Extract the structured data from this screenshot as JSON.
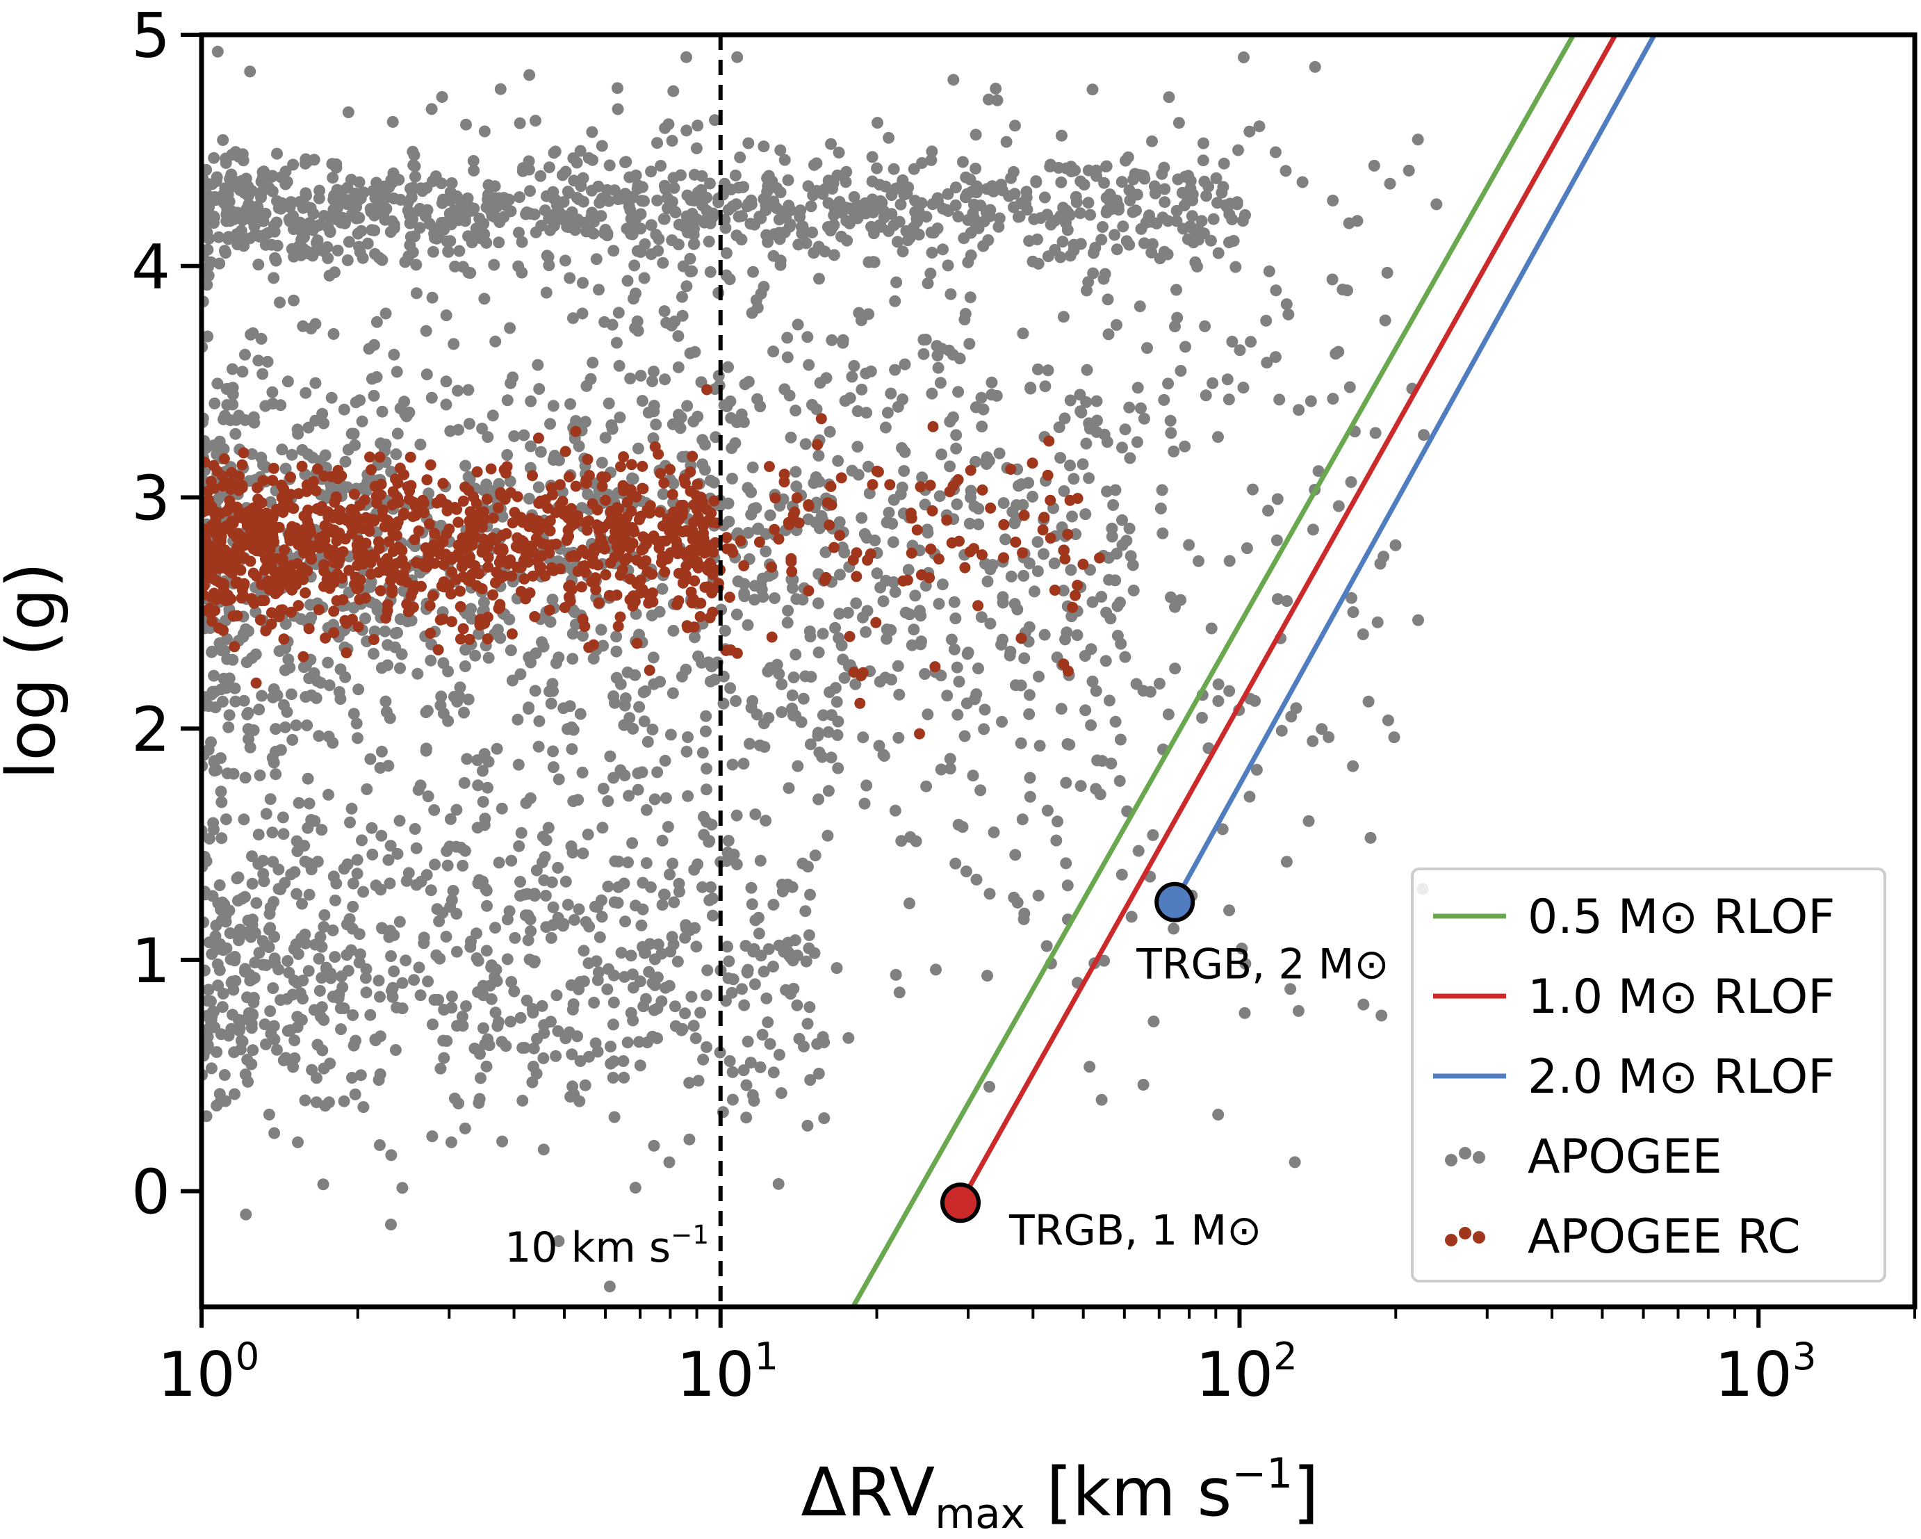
{
  "chart_data": {
    "type": "scatter",
    "x_scale": "log",
    "xlim": [
      1,
      2000
    ],
    "ylim": [
      -0.5,
      5
    ],
    "ylabel": "log (g)",
    "xlabel": {
      "main": "ΔRV",
      "sub": "max",
      "unit": " [km s",
      "exp": "−1",
      "close": "]"
    },
    "x_ticks": [
      {
        "value": 1,
        "base": "10",
        "exp": "0"
      },
      {
        "value": 10,
        "base": "10",
        "exp": "1"
      },
      {
        "value": 100,
        "base": "10",
        "exp": "2"
      },
      {
        "value": 1000,
        "base": "10",
        "exp": "3"
      }
    ],
    "y_ticks": [
      {
        "value": 0,
        "label": "0"
      },
      {
        "value": 1,
        "label": "1"
      },
      {
        "value": 2,
        "label": "2"
      },
      {
        "value": 3,
        "label": "3"
      },
      {
        "value": 4,
        "label": "4"
      },
      {
        "value": 5,
        "label": "5"
      }
    ],
    "vline": {
      "x": 10,
      "label_main": "10 km s",
      "label_exp": "−1",
      "style": "dashed",
      "color": "#000000"
    },
    "series": [
      {
        "name": "0.5 M⊙ RLOF",
        "type": "line",
        "color": "#6aa84f",
        "points": [
          [
            18,
            -0.5
          ],
          [
            440,
            5
          ]
        ]
      },
      {
        "name": "1.0 M⊙ RLOF",
        "type": "line",
        "color": "#cc2a2a",
        "points": [
          [
            29,
            -0.05
          ],
          [
            530,
            5
          ]
        ]
      },
      {
        "name": "2.0 M⊙ RLOF",
        "type": "line",
        "color": "#4f7dc0",
        "points": [
          [
            75,
            1.25
          ],
          [
            630,
            5
          ]
        ]
      },
      {
        "name": "APOGEE",
        "type": "scatter",
        "color": "#808080",
        "clusters": [
          {
            "x_log_range": [
              0.0,
              2.0
            ],
            "y_mean": 4.25,
            "y_sd": 0.12,
            "n": 900
          },
          {
            "x_log_range": [
              0.0,
              1.2
            ],
            "y_mean": 0.95,
            "y_sd": 0.35,
            "n": 650
          },
          {
            "x_log_range": [
              0.0,
              1.8
            ],
            "y_mean": 2.7,
            "y_sd": 0.55,
            "n": 1100
          },
          {
            "x_log_range": [
              0.0,
              2.3
            ],
            "y_mean": 2.5,
            "y_sd": 1.1,
            "n": 500
          },
          {
            "x_log_range": [
              0.8,
              2.4
            ],
            "y_mean": 3.6,
            "y_sd": 0.9,
            "n": 250
          }
        ]
      },
      {
        "name": "APOGEE RC",
        "type": "scatter",
        "color": "#a0361c",
        "clusters": [
          {
            "x_log_range": [
              0.0,
              1.0
            ],
            "y_mean": 2.78,
            "y_sd": 0.17,
            "n": 950
          },
          {
            "x_log_range": [
              0.8,
              1.75
            ],
            "y_mean": 2.8,
            "y_sd": 0.25,
            "n": 160
          }
        ]
      }
    ],
    "markers": [
      {
        "label": "TRGB, 1 M⊙",
        "x": 29,
        "y": -0.05,
        "color": "#cc2a2a"
      },
      {
        "label": "TRGB, 2 M⊙",
        "x": 75,
        "y": 1.25,
        "color": "#4f7dc0"
      }
    ],
    "legend": {
      "position": "bottom-right",
      "entries": [
        {
          "label": "0.5 M⊙ RLOF",
          "kind": "line",
          "color": "#6aa84f"
        },
        {
          "label": "1.0 M⊙ RLOF",
          "kind": "line",
          "color": "#cc2a2a"
        },
        {
          "label": "2.0 M⊙ RLOF",
          "kind": "line",
          "color": "#4f7dc0"
        },
        {
          "label": "APOGEE",
          "kind": "dots",
          "color": "#808080"
        },
        {
          "label": "APOGEE RC",
          "kind": "dots",
          "color": "#a0361c"
        }
      ]
    }
  }
}
